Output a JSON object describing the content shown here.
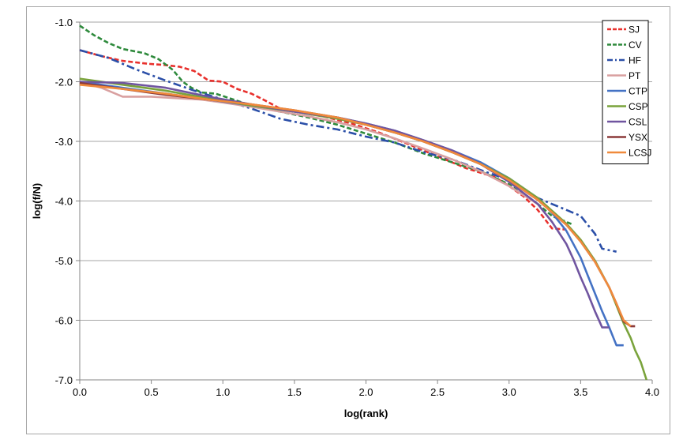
{
  "chart_data": {
    "type": "line",
    "title": "",
    "xlabel": "log(rank)",
    "ylabel": "log(f/N)",
    "xlim": [
      0.0,
      4.0
    ],
    "ylim": [
      -7.0,
      -1.0
    ],
    "x_ticks": [
      "0.0",
      "0.5",
      "1.0",
      "1.5",
      "2.0",
      "2.5",
      "3.0",
      "3.5",
      "4.0"
    ],
    "y_ticks": [
      "-1.0",
      "-2.0",
      "-3.0",
      "-4.0",
      "-5.0",
      "-6.0",
      "-7.0"
    ],
    "grid": "horizontal",
    "legend_position": "top-right",
    "series": [
      {
        "name": "SJ",
        "color": "#e8302c",
        "dash": "dashed",
        "x": [
          0.0,
          0.15,
          0.3,
          0.48,
          0.6,
          0.7,
          0.8,
          0.9,
          1.0,
          1.1,
          1.2,
          1.3,
          1.4,
          1.5,
          1.7,
          1.9,
          2.1,
          2.3,
          2.5,
          2.7,
          2.9,
          3.0,
          3.1,
          3.2,
          3.3,
          3.4
        ],
        "y": [
          -1.47,
          -1.57,
          -1.65,
          -1.7,
          -1.72,
          -1.75,
          -1.82,
          -1.98,
          -2.0,
          -2.12,
          -2.2,
          -2.32,
          -2.45,
          -2.5,
          -2.58,
          -2.7,
          -2.86,
          -3.05,
          -3.25,
          -3.45,
          -3.6,
          -3.75,
          -3.92,
          -4.15,
          -4.46,
          -4.48
        ]
      },
      {
        "name": "CV",
        "color": "#2e8a3c",
        "dash": "dashed",
        "x": [
          0.0,
          0.1,
          0.2,
          0.3,
          0.45,
          0.55,
          0.65,
          0.72,
          0.78,
          0.85,
          0.95,
          1.05,
          1.2,
          1.4,
          1.6,
          1.8,
          2.0,
          2.2,
          2.4,
          2.6,
          2.8,
          3.0,
          3.1,
          3.2,
          3.3,
          3.45
        ],
        "y": [
          -1.06,
          -1.22,
          -1.35,
          -1.45,
          -1.52,
          -1.62,
          -1.8,
          -2.0,
          -2.1,
          -2.18,
          -2.2,
          -2.28,
          -2.4,
          -2.5,
          -2.6,
          -2.72,
          -2.87,
          -3.02,
          -3.2,
          -3.35,
          -3.5,
          -3.72,
          -3.88,
          -4.05,
          -4.25,
          -4.4
        ]
      },
      {
        "name": "HF",
        "color": "#2b4fa8",
        "dash": "dashdot",
        "x": [
          0.0,
          0.2,
          0.4,
          0.6,
          0.8,
          1.0,
          1.2,
          1.4,
          1.6,
          1.8,
          2.0,
          2.2,
          2.4,
          2.6,
          2.8,
          3.0,
          3.1,
          3.2,
          3.3,
          3.4,
          3.5,
          3.55,
          3.6,
          3.65,
          3.75
        ],
        "y": [
          -1.47,
          -1.6,
          -1.8,
          -1.98,
          -2.15,
          -2.3,
          -2.45,
          -2.62,
          -2.72,
          -2.8,
          -2.92,
          -3.02,
          -3.18,
          -3.3,
          -3.48,
          -3.65,
          -3.8,
          -3.95,
          -4.05,
          -4.15,
          -4.25,
          -4.4,
          -4.55,
          -4.8,
          -4.85
        ]
      },
      {
        "name": "PT",
        "color": "#d9a0a0",
        "dash": "solid",
        "x": [
          0.0,
          0.15,
          0.3,
          0.5,
          0.7,
          0.85,
          1.0,
          1.2,
          1.4,
          1.6,
          1.8,
          2.0,
          2.2,
          2.4,
          2.6,
          2.8,
          3.0,
          3.2
        ],
        "y": [
          -2.0,
          -2.1,
          -2.25,
          -2.25,
          -2.28,
          -2.3,
          -2.35,
          -2.42,
          -2.5,
          -2.58,
          -2.68,
          -2.8,
          -2.95,
          -3.12,
          -3.3,
          -3.5,
          -3.75,
          -4.05
        ]
      },
      {
        "name": "CTP",
        "color": "#4472c4",
        "dash": "solid",
        "x": [
          0.0,
          0.3,
          0.6,
          0.9,
          1.2,
          1.5,
          1.8,
          2.0,
          2.2,
          2.4,
          2.6,
          2.8,
          3.0,
          3.2,
          3.3,
          3.4,
          3.5,
          3.55,
          3.6,
          3.65,
          3.7,
          3.75,
          3.8
        ],
        "y": [
          -2.0,
          -2.1,
          -2.2,
          -2.3,
          -2.4,
          -2.5,
          -2.6,
          -2.7,
          -2.82,
          -2.98,
          -3.15,
          -3.35,
          -3.62,
          -3.95,
          -4.2,
          -4.5,
          -4.95,
          -5.25,
          -5.55,
          -5.85,
          -6.12,
          -6.42,
          -6.42
        ]
      },
      {
        "name": "CSP",
        "color": "#7aa33c",
        "dash": "solid",
        "x": [
          0.0,
          0.3,
          0.6,
          0.9,
          1.2,
          1.5,
          1.8,
          2.0,
          2.2,
          2.4,
          2.6,
          2.8,
          3.0,
          3.2,
          3.4,
          3.5,
          3.6,
          3.7,
          3.75,
          3.8,
          3.85,
          3.88,
          3.92,
          3.96
        ],
        "y": [
          -1.95,
          -2.05,
          -2.15,
          -2.28,
          -2.4,
          -2.5,
          -2.62,
          -2.72,
          -2.85,
          -3.0,
          -3.18,
          -3.38,
          -3.62,
          -3.95,
          -4.38,
          -4.65,
          -5.0,
          -5.45,
          -5.75,
          -6.05,
          -6.3,
          -6.5,
          -6.7,
          -7.0
        ]
      },
      {
        "name": "CSL",
        "color": "#7055a0",
        "dash": "solid",
        "x": [
          0.0,
          0.3,
          0.6,
          0.9,
          1.2,
          1.5,
          1.8,
          2.0,
          2.2,
          2.4,
          2.6,
          2.8,
          3.0,
          3.2,
          3.3,
          3.4,
          3.45,
          3.5,
          3.55,
          3.6,
          3.65,
          3.7
        ],
        "y": [
          -2.0,
          -2.02,
          -2.1,
          -2.25,
          -2.38,
          -2.5,
          -2.6,
          -2.7,
          -2.82,
          -2.98,
          -3.15,
          -3.38,
          -3.68,
          -4.05,
          -4.35,
          -4.72,
          -4.98,
          -5.28,
          -5.55,
          -5.85,
          -6.12,
          -6.12
        ]
      },
      {
        "name": "YSX",
        "color": "#8b3a3a",
        "dash": "solid",
        "x": [
          0.0,
          0.3,
          0.6,
          0.9,
          1.2,
          1.5,
          1.8,
          2.0,
          2.2,
          2.4,
          2.6,
          2.8,
          3.0,
          3.2,
          3.4,
          3.5,
          3.6,
          3.7,
          3.75,
          3.8,
          3.85,
          3.88
        ],
        "y": [
          -2.02,
          -2.12,
          -2.22,
          -2.3,
          -2.38,
          -2.48,
          -2.6,
          -2.72,
          -2.85,
          -3.0,
          -3.18,
          -3.38,
          -3.65,
          -3.98,
          -4.4,
          -4.68,
          -5.02,
          -5.45,
          -5.72,
          -6.02,
          -6.1,
          -6.1
        ]
      },
      {
        "name": "LCSJ",
        "color": "#f08a3c",
        "dash": "solid",
        "x": [
          0.0,
          0.3,
          0.6,
          0.9,
          1.2,
          1.5,
          1.8,
          2.0,
          2.2,
          2.4,
          2.6,
          2.8,
          3.0,
          3.2,
          3.4,
          3.5,
          3.6,
          3.7,
          3.75,
          3.8,
          3.85
        ],
        "y": [
          -2.05,
          -2.12,
          -2.2,
          -2.3,
          -2.38,
          -2.48,
          -2.6,
          -2.72,
          -2.85,
          -3.0,
          -3.18,
          -3.38,
          -3.65,
          -3.98,
          -4.4,
          -4.68,
          -5.02,
          -5.45,
          -5.72,
          -6.0,
          -6.1
        ]
      }
    ]
  }
}
